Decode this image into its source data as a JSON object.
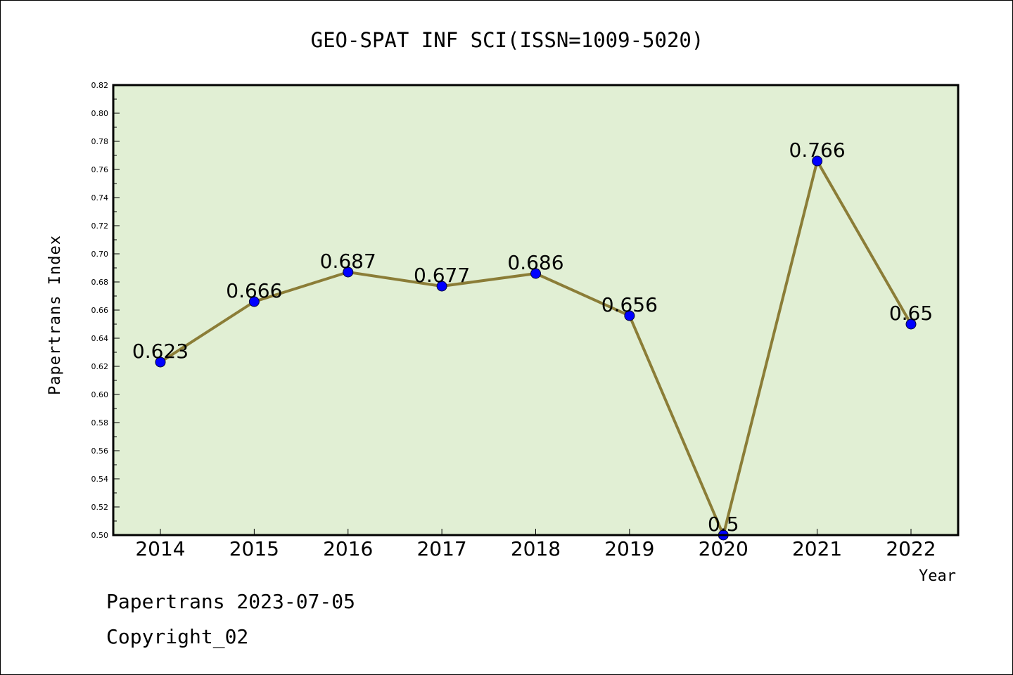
{
  "chart_data": {
    "type": "line",
    "title": "GEO-SPAT INF SCI(ISSN=1009-5020)",
    "xlabel": "Year",
    "ylabel": "Papertrans Index",
    "categories": [
      "2014",
      "2015",
      "2016",
      "2017",
      "2018",
      "2019",
      "2020",
      "2021",
      "2022"
    ],
    "values": [
      0.623,
      0.666,
      0.687,
      0.677,
      0.686,
      0.656,
      0.5,
      0.766,
      0.65
    ],
    "data_labels": [
      "0.623",
      "0.666",
      "0.687",
      "0.677",
      "0.686",
      "0.656",
      "0.5",
      "0.766",
      "0.65"
    ],
    "ylim": [
      0.5,
      0.82
    ],
    "yticks": [
      "0.50",
      "0.52",
      "0.54",
      "0.56",
      "0.58",
      "0.60",
      "0.62",
      "0.64",
      "0.66",
      "0.68",
      "0.70",
      "0.72",
      "0.74",
      "0.76",
      "0.78",
      "0.80",
      "0.82"
    ],
    "grid": false,
    "legend": "none",
    "colors": {
      "plot_background": "#e1efd4",
      "line": "#8b7d37",
      "marker": "#0000ff"
    }
  },
  "footer": {
    "line1": "Papertrans 2023-07-05",
    "line2": "Copyright_02"
  }
}
